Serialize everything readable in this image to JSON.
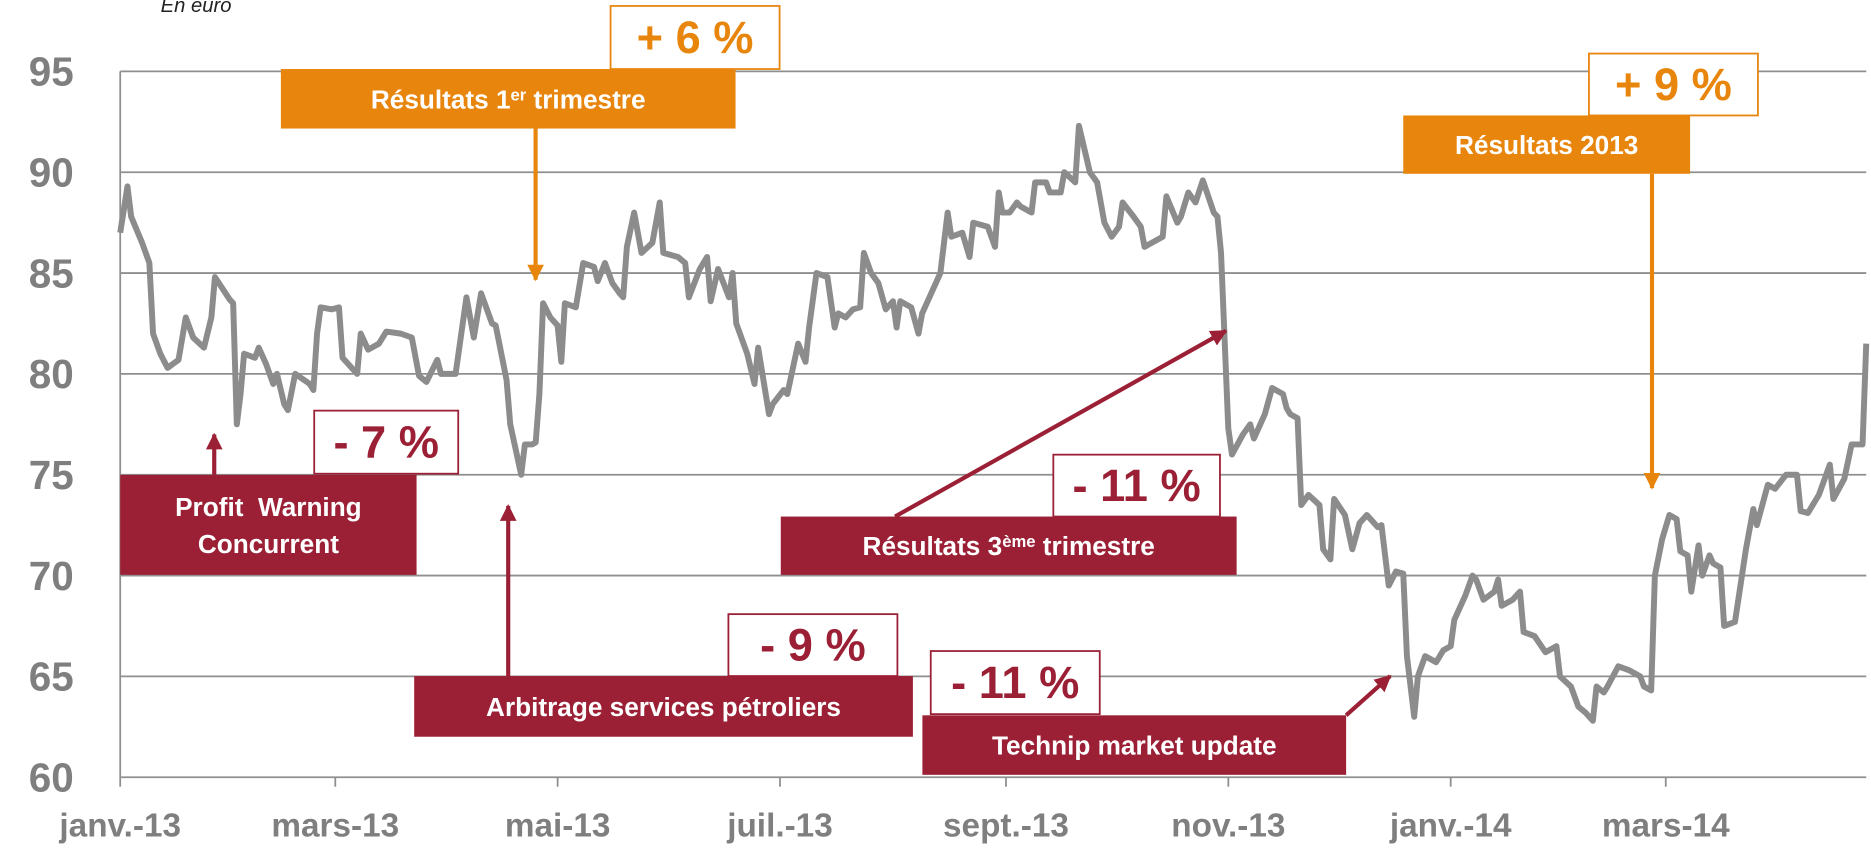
{
  "chart_data": {
    "type": "line",
    "subtitle": "En euro",
    "color": "#8c8c8c",
    "grid": true,
    "xlim": [
      0,
      479
    ],
    "ylim": [
      60,
      95
    ],
    "yticks": [
      60,
      65,
      70,
      75,
      80,
      85,
      90,
      95
    ],
    "xticks": [
      {
        "value": 0,
        "label": "janv.-13"
      },
      {
        "value": 59,
        "label": "mars-13"
      },
      {
        "value": 120,
        "label": "mai-13"
      },
      {
        "value": 181,
        "label": "juil.-13"
      },
      {
        "value": 243,
        "label": "sept.-13"
      },
      {
        "value": 304,
        "label": "nov.-13"
      },
      {
        "value": 365,
        "label": "janv.-14"
      },
      {
        "value": 424,
        "label": "mars-14"
      }
    ],
    "x": [
      0,
      2,
      3,
      6,
      8,
      9,
      11,
      13,
      16,
      18,
      20,
      23,
      25,
      26,
      30,
      31,
      32,
      33,
      34,
      37,
      38,
      40,
      42,
      43,
      45,
      46,
      48,
      52,
      53,
      54,
      55,
      58,
      60,
      61,
      65,
      66,
      68,
      71,
      72,
      73,
      77,
      80,
      82,
      84,
      87,
      88,
      92,
      95,
      97,
      99,
      102,
      103,
      106,
      107,
      110,
      111,
      113,
      114,
      115,
      116,
      118,
      120,
      121,
      122,
      125,
      127,
      130,
      131,
      133,
      135,
      137,
      138,
      139,
      141,
      143,
      146,
      148,
      149,
      153,
      155,
      156,
      159,
      161,
      162,
      164,
      167,
      168,
      169,
      172,
      174,
      175,
      178,
      179,
      182,
      183,
      186,
      188,
      189,
      191,
      194,
      196,
      197,
      199,
      201,
      203,
      204,
      206,
      208,
      210,
      212,
      213,
      214,
      217,
      219,
      220,
      222,
      225,
      227,
      228,
      231,
      233,
      234,
      238,
      240,
      241,
      242,
      244,
      246,
      247,
      250,
      251,
      254,
      255,
      258,
      259,
      262,
      263,
      266,
      268,
      270,
      272,
      274,
      275,
      278,
      280,
      281,
      283,
      286,
      287,
      290,
      291,
      293,
      295,
      297,
      300,
      301,
      302,
      304,
      305,
      308,
      310,
      311,
      314,
      316,
      319,
      320,
      321,
      323,
      324,
      326,
      329,
      330,
      332,
      333,
      336,
      338,
      340,
      342,
      345,
      346,
      348,
      350,
      352,
      353,
      355,
      356,
      358,
      361,
      363,
      365,
      366,
      369,
      371,
      372,
      374,
      377,
      378,
      379,
      382,
      384,
      385,
      388,
      391,
      394,
      395,
      398,
      400,
      402,
      404,
      405,
      407,
      408,
      411,
      414,
      417,
      418,
      420,
      421,
      423,
      425,
      427,
      428,
      430,
      431,
      433,
      434,
      436,
      437,
      439,
      440,
      443,
      446,
      448,
      449,
      452,
      454,
      457,
      460,
      461,
      463,
      466,
      469,
      470,
      473,
      475,
      477,
      478,
      479
    ],
    "values": [
      87,
      89.3,
      87.8,
      86.5,
      85.5,
      82,
      81,
      80.3,
      80.7,
      82.8,
      81.8,
      81.3,
      82.8,
      84.8,
      83.7,
      83.5,
      77.5,
      79,
      81,
      80.8,
      81.3,
      80.5,
      79.5,
      80,
      78.5,
      78.2,
      80,
      79.5,
      79.2,
      82,
      83.3,
      83.2,
      83.3,
      80.8,
      80,
      82,
      81.2,
      81.5,
      81.8,
      82.1,
      82,
      81.8,
      79.9,
      79.6,
      80.7,
      80,
      80,
      83.8,
      81.8,
      84,
      82.5,
      82.4,
      79.7,
      77.5,
      75,
      76.5,
      76.5,
      76.6,
      79,
      83.5,
      82.8,
      82.4,
      80.6,
      83.5,
      83.3,
      85.5,
      85.3,
      84.6,
      85.5,
      84.5,
      84,
      83.8,
      86.3,
      88,
      86,
      86.5,
      88.5,
      86,
      85.8,
      85.5,
      83.8,
      85.2,
      85.8,
      83.6,
      85.2,
      83.8,
      85,
      82.5,
      81,
      79.5,
      81.3,
      78,
      78.5,
      79.2,
      79,
      81.5,
      80.6,
      82.3,
      85,
      84.8,
      82.3,
      83,
      82.8,
      83.2,
      83.3,
      86,
      85,
      84.5,
      83.2,
      83.6,
      82.3,
      83.6,
      83.3,
      82,
      83,
      83.8,
      85,
      88,
      86.8,
      87,
      85.8,
      87.5,
      87.3,
      86.3,
      89,
      88,
      88,
      88.5,
      88.3,
      88,
      89.5,
      89.5,
      89,
      89,
      90,
      89.5,
      92.3,
      90,
      89.5,
      87.5,
      86.8,
      87.3,
      88.5,
      87.8,
      87.3,
      86.3,
      86.5,
      86.8,
      88.8,
      87.5,
      87.8,
      89,
      88.5,
      89.6,
      88,
      87.8,
      86,
      77.3,
      76,
      77,
      77.5,
      76.8,
      78,
      79.3,
      79,
      78.3,
      78,
      77.8,
      73.5,
      74,
      73.5,
      71.3,
      70.8,
      73.8,
      73,
      71.3,
      72.6,
      73,
      72.4,
      72.5,
      69.5,
      70.2,
      70.1,
      66,
      63,
      65,
      66,
      65.7,
      66.3,
      66.5,
      67.8,
      69,
      70,
      69.8,
      68.8,
      69.2,
      69.8,
      68.5,
      68.8,
      69.2,
      67.2,
      67,
      66.2,
      66.5,
      65,
      64.5,
      63.5,
      63.2,
      62.8,
      64.5,
      64.2,
      64.5,
      65.5,
      65.3,
      65,
      64.5,
      64.3,
      70,
      71.8,
      73,
      72.8,
      71.2,
      71,
      69.2,
      71.5,
      70,
      71,
      70.6,
      70.4,
      67.5,
      67.7,
      71.3,
      73.3,
      72.5,
      74.5,
      74.3,
      75,
      75,
      73.2,
      73.1,
      74,
      75.5,
      73.8,
      74.8,
      76.5,
      76.5,
      76.5,
      81.5
    ],
    "annotations": [
      {
        "lines": [
          [
            "Résultats 1",
            "er",
            " trimestre"
          ]
        ],
        "change": "+ 6 %",
        "color": "#e8850c"
      },
      {
        "lines": [
          [
            "Résultats 2013"
          ]
        ],
        "change": "+ 9 %",
        "color": "#e8850c"
      },
      {
        "lines": [
          [
            "Profit  Warning"
          ],
          [
            "Concurrent"
          ]
        ],
        "change": "- 7 %",
        "color": "#9b2035"
      },
      {
        "lines": [
          [
            "Arbitrage services pétroliers"
          ]
        ],
        "change": "- 9 %",
        "color": "#9b2035"
      },
      {
        "lines": [
          [
            "Résultats 3",
            "ème",
            " trimestre"
          ]
        ],
        "change": "- 11 %",
        "color": "#9b2035"
      },
      {
        "lines": [
          [
            "Technip market update"
          ]
        ],
        "change": "- 11 %",
        "color": "#9b2035"
      }
    ]
  }
}
